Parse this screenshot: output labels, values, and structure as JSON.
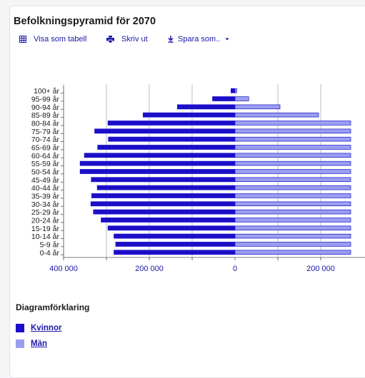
{
  "page": {
    "title": "Befolkningspyramid för 2070",
    "toolbar": {
      "table_label": "Visa som tabell",
      "print_label": "Skriv ut",
      "save_label": "Spara som.."
    }
  },
  "legend": {
    "title": "Diagramförklaring",
    "items": [
      {
        "label": "Kvinnor",
        "color": "#1c0fc9"
      },
      {
        "label": "Män",
        "color": "#9a9ef0"
      }
    ]
  },
  "colors": {
    "accent": "#1a17a8",
    "women": "#1c0fc9",
    "men": "#9a9ef0"
  },
  "chart_data": {
    "type": "bar",
    "orientation": "horizontal-pyramid",
    "title": "Befolkningspyramid för 2070",
    "categories": [
      "100+ år",
      "95-99 år",
      "90-94 år",
      "85-89 år",
      "80-84 år",
      "75-79 år",
      "70-74 år",
      "65-69 år",
      "60-64 år",
      "55-59 år",
      "50-54 år",
      "45-49 år",
      "40-44 år",
      "35-39 år",
      "30-34 år",
      "25-29 år",
      "20-24 år",
      "15-19 år",
      "10-14 år",
      "5-9 år",
      "0-4 år"
    ],
    "series": [
      {
        "name": "Kvinnor",
        "side": "left",
        "values": [
          10000,
          53000,
          135000,
          215000,
          297000,
          328000,
          296000,
          321000,
          352000,
          362000,
          362000,
          336000,
          322000,
          335000,
          337000,
          331000,
          313000,
          297000,
          283000,
          279000,
          283000
        ]
      },
      {
        "name": "Män",
        "side": "right",
        "values": [
          4000,
          32000,
          105000,
          195000,
          270000,
          270000,
          270000,
          270000,
          270000,
          270000,
          270000,
          270000,
          270000,
          270000,
          270000,
          270000,
          270000,
          270000,
          270000,
          270000,
          270000
        ]
      }
    ],
    "xticks": [
      -400000,
      -300000,
      -200000,
      -100000,
      0,
      100000,
      200000
    ],
    "xtick_labels": [
      "400 000",
      "",
      "200 000",
      "",
      "0",
      "",
      "200 000"
    ],
    "xlim": [
      -400000,
      270000
    ],
    "legend_position": "bottom-left"
  }
}
